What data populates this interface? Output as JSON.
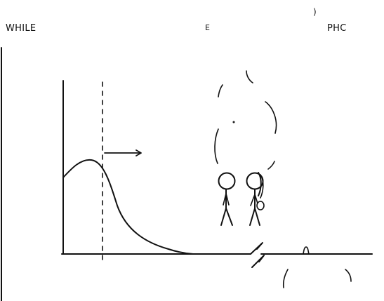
{
  "captions": {
    "left": "WHILE",
    "middle": "E",
    "right": "PHC",
    "top_fragment": ")"
  },
  "colors": {
    "ink": "#111111",
    "background": "#ffffff"
  }
}
